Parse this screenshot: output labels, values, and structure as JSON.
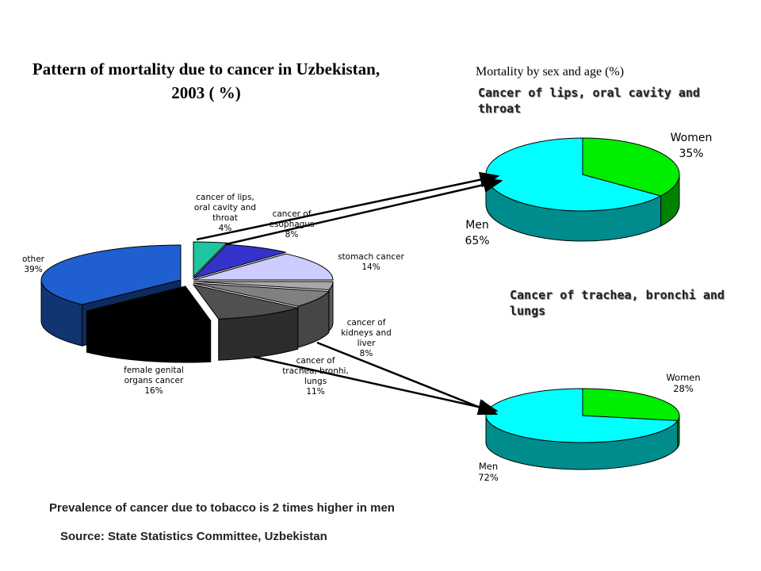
{
  "main_title": "Pattern of mortality due to cancer in Uzbekistan, 2003 ( %)",
  "right_title": "Mortality by sex and age (%)",
  "subheads": {
    "lips": "Cancer of lips, oral cavity and throat",
    "trachea": "Cancer of trachea, bronchi and lungs"
  },
  "note": "Prevalence of cancer due to tobacco is 2 times higher in men",
  "source": "Source: State Statistics Committee, Uzbekistan",
  "colors": {
    "lips": "#1fc4a0",
    "esophagus": "#3333cc",
    "stomach": "#ccccff",
    "other_gray": "#a8a8a8",
    "kidneys": "#808080",
    "trachea": "#505050",
    "female": "#000000",
    "other": "#1f5fcf",
    "men": "#00ffff",
    "women": "#00ee00"
  },
  "chart_data": [
    {
      "type": "pie",
      "title": "Pattern of mortality due to cancer in Uzbekistan, 2003 ( %)",
      "slices": [
        {
          "label_lines": [
            "cancer of lips,",
            "oral cavity and",
            "throat"
          ],
          "value_text": "4%",
          "value": 4
        },
        {
          "label_lines": [
            "cancer of",
            "esophagus"
          ],
          "value_text": "8%",
          "value": 8
        },
        {
          "label_lines": [
            "stomach cancer"
          ],
          "value_text": "14%",
          "value": 14
        },
        {
          "label_lines": [],
          "value_text": "",
          "value": 4
        },
        {
          "label_lines": [
            "cancer of",
            "kidneys and",
            "liver"
          ],
          "value_text": "8%",
          "value": 8
        },
        {
          "label_lines": [
            "cancer of",
            "trachea, bronhi,",
            "lungs"
          ],
          "value_text": "11%",
          "value": 11
        },
        {
          "label_lines": [
            "female genital",
            "organs cancer"
          ],
          "value_text": "16%",
          "value": 16
        },
        {
          "label_lines": [
            "other"
          ],
          "value_text": "39%",
          "value": 39
        }
      ]
    },
    {
      "type": "pie",
      "title": "Cancer of lips, oral cavity and throat",
      "slices": [
        {
          "label": "Women",
          "value_text": "35%",
          "value": 35
        },
        {
          "label": "Men",
          "value_text": "65%",
          "value": 65
        }
      ]
    },
    {
      "type": "pie",
      "title": "Cancer of trachea, bronchi and lungs",
      "slices": [
        {
          "label": "Women",
          "value_text": "28%",
          "value": 28
        },
        {
          "label": "Men",
          "value_text": "72%",
          "value": 72
        }
      ]
    }
  ]
}
